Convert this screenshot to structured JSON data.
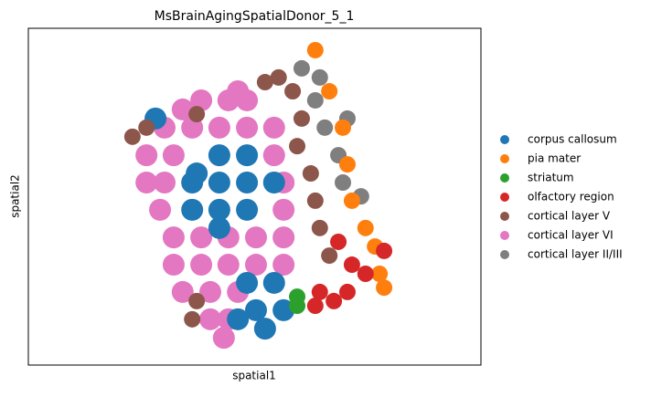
{
  "chart_data": {
    "type": "scatter",
    "title": "MsBrainAgingSpatialDonor_5_1",
    "x_label": "spatial1",
    "y_label": "spatial2",
    "xlim": [
      0,
      100
    ],
    "ylim": [
      0,
      100
    ],
    "legend": "right",
    "series": [
      {
        "name": "cortical layer VI",
        "color": "#e377c2",
        "x": [
          46.3,
          38.2,
          44.2,
          48.3,
          34.1,
          30.1,
          36.2,
          42.2,
          48.3,
          54.3,
          26.1,
          32.1,
          54.3,
          26.1,
          30.1,
          56.4,
          29.1,
          56.4,
          32.1,
          38.2,
          44.2,
          50.3,
          56.4,
          32.1,
          38.2,
          44.2,
          50.3,
          56.4,
          34.1,
          40.2,
          46.3,
          40.2,
          44.2,
          43.2
        ],
        "y": [
          81.3,
          78.6,
          78.6,
          78.6,
          75.9,
          70.5,
          70.5,
          70.5,
          70.5,
          70.5,
          62.3,
          62.3,
          62.3,
          54.2,
          54.2,
          54.2,
          46.1,
          46.1,
          37.9,
          37.9,
          37.9,
          37.9,
          37.9,
          29.8,
          29.8,
          29.8,
          29.8,
          29.8,
          21.7,
          21.7,
          21.7,
          13.6,
          13.6,
          8.1
        ]
      },
      {
        "name": "corpus callosum",
        "color": "#1f77b4",
        "x": [
          37.2,
          42.2,
          48.3,
          36.2,
          42.2,
          48.3,
          54.3,
          36.2,
          42.2,
          48.3,
          42.2,
          48.3,
          54.3,
          50.3,
          56.4,
          46.3,
          52.3,
          28.1
        ],
        "y": [
          56.9,
          62.3,
          62.3,
          54.2,
          54.2,
          54.2,
          54.2,
          46.1,
          46.1,
          46.1,
          40.7,
          24.4,
          24.4,
          16.3,
          16.3,
          13.6,
          10.8,
          73.2
        ]
      },
      {
        "name": "cortical layer V",
        "color": "#8c564b",
        "x": [
          58.4,
          60.4,
          59.4,
          62.4,
          63.4,
          64.4,
          66.5,
          52.3,
          55.3,
          23.0,
          26.1,
          37.2,
          36.2,
          37.2
        ],
        "y": [
          81.3,
          73.2,
          65.0,
          56.9,
          48.8,
          40.7,
          32.5,
          84.0,
          85.4,
          67.8,
          70.5,
          19.0,
          13.6,
          74.5
        ]
      },
      {
        "name": "cortical layer II/III",
        "color": "#7f7f7f",
        "x": [
          60.4,
          64.4,
          63.4,
          65.5,
          68.5,
          69.5,
          73.5,
          70.5
        ],
        "y": [
          88.1,
          85.4,
          78.6,
          70.5,
          62.3,
          54.2,
          50.1,
          73.2
        ]
      },
      {
        "name": "pia mater",
        "color": "#ff7f0e",
        "x": [
          63.4,
          66.5,
          69.5,
          70.5,
          71.5,
          74.5,
          76.6,
          77.6,
          78.6
        ],
        "y": [
          93.5,
          81.3,
          70.5,
          59.6,
          48.8,
          40.7,
          35.2,
          27.1,
          23.0
        ]
      },
      {
        "name": "olfactory region",
        "color": "#d62728",
        "x": [
          68.5,
          71.5,
          74.5,
          78.6,
          64.4,
          67.5,
          63.4,
          70.5
        ],
        "y": [
          36.6,
          29.8,
          27.1,
          33.9,
          21.7,
          19.0,
          17.6,
          21.7
        ]
      },
      {
        "name": "striatum",
        "color": "#2ca02c",
        "x": [
          59.4,
          59.4
        ],
        "y": [
          20.3,
          17.6
        ]
      }
    ],
    "legend_order": [
      1,
      4,
      6,
      5,
      2,
      0,
      3
    ]
  }
}
